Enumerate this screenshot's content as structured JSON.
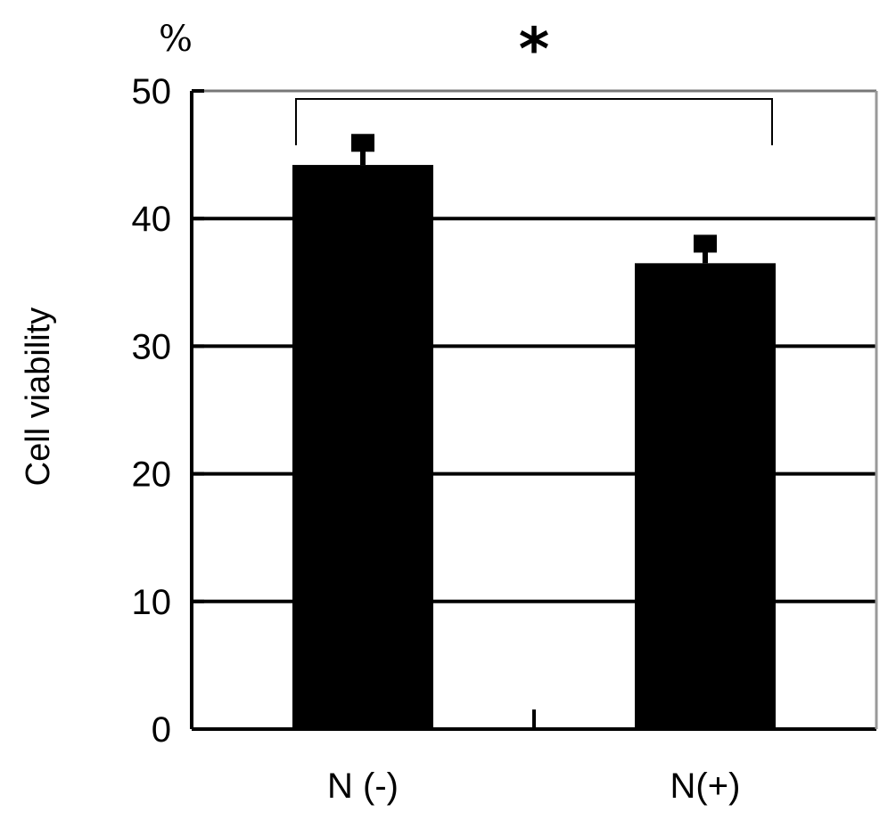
{
  "chart_data": {
    "type": "bar",
    "categories": [
      "N (-)",
      "N(+)"
    ],
    "values": [
      44.2,
      36.5
    ],
    "error": [
      1.8,
      1.6
    ],
    "ylabel": "Cell viability",
    "unit_label": "%",
    "ylim": [
      0,
      50
    ],
    "yticks": [
      "0",
      "10",
      "20",
      "30",
      "40",
      "50"
    ],
    "grid": true,
    "significance": {
      "marker": "*",
      "between": [
        0,
        1
      ]
    },
    "colors": {
      "bar": "#000000",
      "grid": "#000000",
      "axis": "#000000"
    }
  }
}
